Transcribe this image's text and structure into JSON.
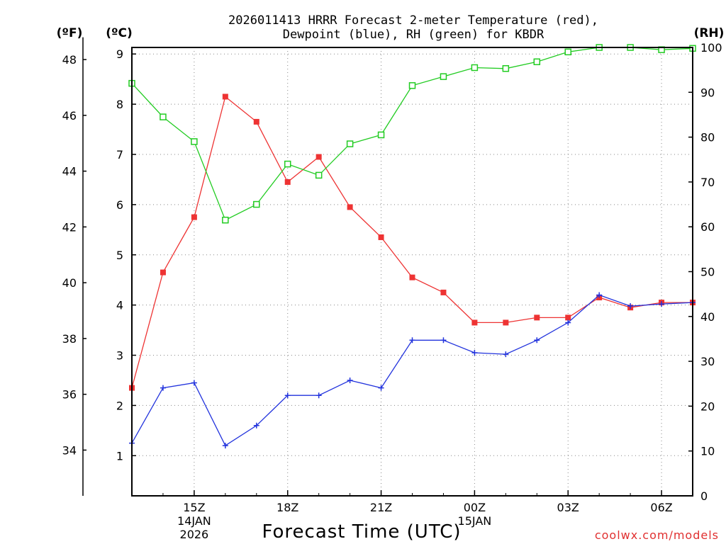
{
  "chart_data": {
    "type": "line",
    "title_line1": "2026011413 HRRR Forecast 2-meter Temperature (red),",
    "title_line2": "Dewpoint (blue), RH (green) for KBDR",
    "units": {
      "left_outer": "(ºF)",
      "left_inner": "(ºC)",
      "right": "(RH)"
    },
    "xlabel": "Forecast Time (UTC)",
    "credit": "coolwx.com/models",
    "x_hours": [
      13,
      14,
      15,
      16,
      17,
      18,
      19,
      20,
      21,
      22,
      23,
      24,
      25,
      26,
      27,
      28,
      29,
      30,
      31
    ],
    "x_ticks": [
      {
        "hour": 15,
        "label": "15Z",
        "sub1": "14JAN",
        "sub2": "2026"
      },
      {
        "hour": 18,
        "label": "18Z",
        "sub1": "",
        "sub2": ""
      },
      {
        "hour": 21,
        "label": "21Z",
        "sub1": "",
        "sub2": ""
      },
      {
        "hour": 24,
        "label": "00Z",
        "sub1": "15JAN",
        "sub2": ""
      },
      {
        "hour": 27,
        "label": "03Z",
        "sub1": "",
        "sub2": ""
      },
      {
        "hour": 30,
        "label": "06Z",
        "sub1": "",
        "sub2": ""
      }
    ],
    "y_celsius": {
      "range": [
        0.2,
        9.13
      ],
      "ticks": [
        1,
        2,
        3,
        4,
        5,
        6,
        7,
        8,
        9
      ]
    },
    "y_fahrenheit": {
      "ticks": [
        34,
        36,
        38,
        40,
        42,
        44,
        46,
        48
      ]
    },
    "y_rh": {
      "range": [
        0,
        100
      ],
      "ticks": [
        0,
        10,
        20,
        30,
        40,
        50,
        60,
        70,
        80,
        90,
        100
      ]
    },
    "series": [
      {
        "name": "Temperature",
        "axis": "celsius",
        "color": "#ee3333",
        "marker": "filled-square",
        "values": [
          2.35,
          4.65,
          5.75,
          8.15,
          7.65,
          6.45,
          6.95,
          5.95,
          5.35,
          4.55,
          4.25,
          3.65,
          3.65,
          3.75,
          3.75,
          4.15,
          3.95,
          4.05,
          4.05
        ]
      },
      {
        "name": "Dewpoint",
        "axis": "celsius",
        "color": "#2233dd",
        "marker": "plus",
        "values": [
          1.25,
          2.35,
          2.45,
          1.2,
          1.6,
          2.2,
          2.2,
          2.5,
          2.35,
          3.3,
          3.3,
          3.05,
          3.02,
          3.3,
          3.65,
          4.2,
          3.98,
          4.02,
          4.05
        ]
      },
      {
        "name": "RH",
        "axis": "rh",
        "color": "#22cc22",
        "marker": "open-square",
        "values": [
          92,
          84.5,
          79,
          61.5,
          65,
          74,
          71.5,
          78.5,
          80.5,
          91.5,
          93.5,
          95.5,
          95.3,
          96.8,
          99,
          100,
          100,
          99.5,
          99.8
        ]
      }
    ]
  }
}
